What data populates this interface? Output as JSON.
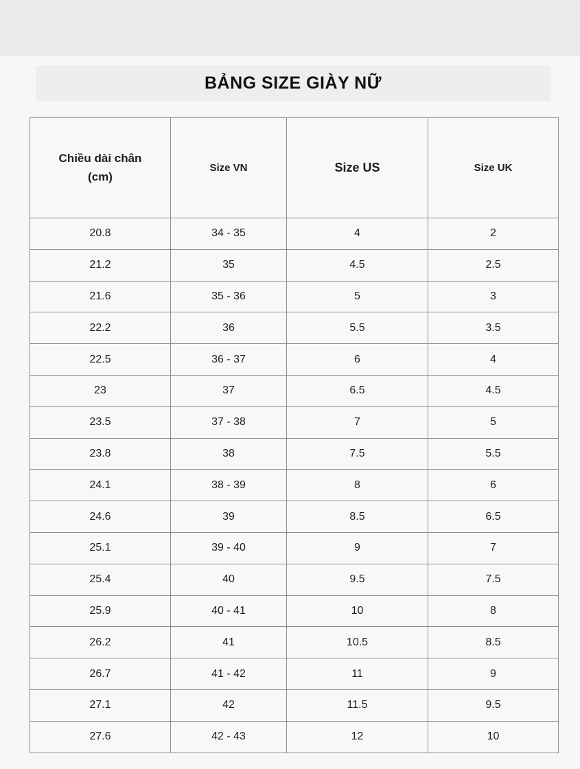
{
  "title": "BẢNG SIZE GIÀY NỮ",
  "colors": {
    "page_background": "#f7f7f7",
    "top_band": "#ebebeb",
    "title_box": "#eeeeee",
    "table_border": "#8d8d8d",
    "text": "#1d1d1d"
  },
  "table": {
    "headers": [
      {
        "line1": "Chiều dài chân",
        "line2": "(cm)"
      },
      {
        "line1": "Size VN",
        "line2": ""
      },
      {
        "line1": "Size US",
        "line2": ""
      },
      {
        "line1": "Size UK",
        "line2": ""
      }
    ],
    "rows": [
      [
        "20.8",
        "34 - 35",
        "4",
        "2"
      ],
      [
        "21.2",
        "35",
        "4.5",
        "2.5"
      ],
      [
        "21.6",
        "35 - 36",
        "5",
        "3"
      ],
      [
        "22.2",
        "36",
        "5.5",
        "3.5"
      ],
      [
        "22.5",
        "36 - 37",
        "6",
        "4"
      ],
      [
        "23",
        "37",
        "6.5",
        "4.5"
      ],
      [
        "23.5",
        "37 - 38",
        "7",
        "5"
      ],
      [
        "23.8",
        "38",
        "7.5",
        "5.5"
      ],
      [
        "24.1",
        "38 - 39",
        "8",
        "6"
      ],
      [
        "24.6",
        "39",
        "8.5",
        "6.5"
      ],
      [
        "25.1",
        "39 - 40",
        "9",
        "7"
      ],
      [
        "25.4",
        "40",
        "9.5",
        "7.5"
      ],
      [
        "25.9",
        "40 - 41",
        "10",
        "8"
      ],
      [
        "26.2",
        "41",
        "10.5",
        "8.5"
      ],
      [
        "26.7",
        "41 - 42",
        "11",
        "9"
      ],
      [
        "27.1",
        "42",
        "11.5",
        "9.5"
      ],
      [
        "27.6",
        "42 - 43",
        "12",
        "10"
      ]
    ]
  },
  "chart_data": {
    "type": "table",
    "title": "BẢNG SIZE GIÀY NỮ",
    "columns": [
      "Chiều dài chân (cm)",
      "Size VN",
      "Size US",
      "Size UK"
    ],
    "rows": [
      [
        "20.8",
        "34 - 35",
        "4",
        "2"
      ],
      [
        "21.2",
        "35",
        "4.5",
        "2.5"
      ],
      [
        "21.6",
        "35 - 36",
        "5",
        "3"
      ],
      [
        "22.2",
        "36",
        "5.5",
        "3.5"
      ],
      [
        "22.5",
        "36 - 37",
        "6",
        "4"
      ],
      [
        "23",
        "37",
        "6.5",
        "4.5"
      ],
      [
        "23.5",
        "37 - 38",
        "7",
        "5"
      ],
      [
        "23.8",
        "38",
        "7.5",
        "5.5"
      ],
      [
        "24.1",
        "38 - 39",
        "8",
        "6"
      ],
      [
        "24.6",
        "39",
        "8.5",
        "6.5"
      ],
      [
        "25.1",
        "39 - 40",
        "9",
        "7"
      ],
      [
        "25.4",
        "40",
        "9.5",
        "7.5"
      ],
      [
        "25.9",
        "40 - 41",
        "10",
        "8"
      ],
      [
        "26.2",
        "41",
        "10.5",
        "8.5"
      ],
      [
        "26.7",
        "41 - 42",
        "11",
        "9"
      ],
      [
        "27.1",
        "42",
        "11.5",
        "9.5"
      ],
      [
        "27.6",
        "42 - 43",
        "12",
        "10"
      ]
    ]
  }
}
